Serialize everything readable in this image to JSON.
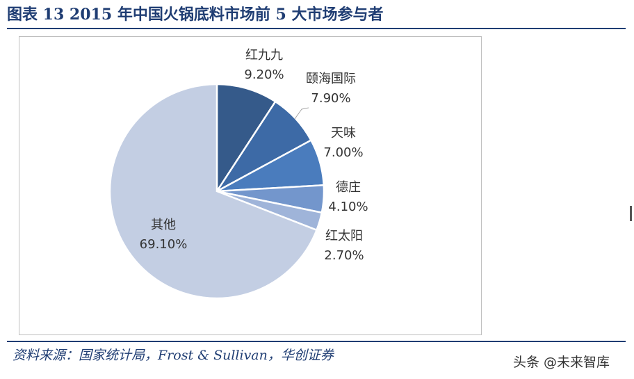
{
  "title": "图表 13    2015 年中国火锅底料市场前 5 大市场参与者",
  "source": "资料来源：国家统计局，Frost & Sullivan，华创证券",
  "watermark": "头条 @未来智库",
  "chart_data": {
    "type": "pie",
    "unit": "%",
    "slices": [
      {
        "label": "红九九",
        "value": 9.2,
        "display": "9.20%",
        "color": "#355a8a"
      },
      {
        "label": "颐海国际",
        "value": 7.9,
        "display": "7.90%",
        "color": "#3d6aa6"
      },
      {
        "label": "天味",
        "value": 7.0,
        "display": "7.00%",
        "color": "#4a7cbd"
      },
      {
        "label": "德庄",
        "value": 4.1,
        "display": "4.10%",
        "color": "#7396cc"
      },
      {
        "label": "红太阳",
        "value": 2.7,
        "display": "2.70%",
        "color": "#9fb4d9"
      },
      {
        "label": "其他",
        "value": 69.1,
        "display": "69.10%",
        "color": "#c3cee3"
      }
    ]
  }
}
